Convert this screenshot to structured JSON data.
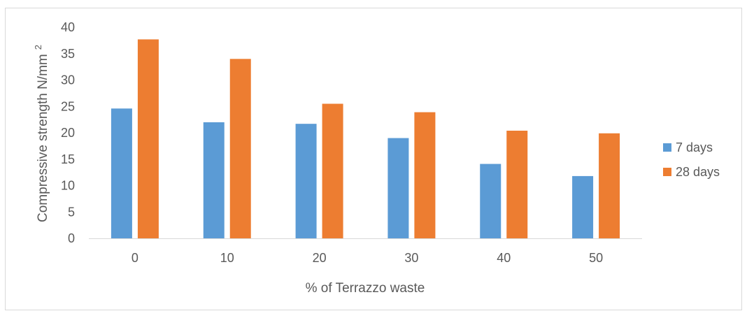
{
  "chart_data": {
    "type": "bar",
    "title": "",
    "xlabel": "% of Terrazzo waste",
    "ylabel": "Compressive strength N/mm",
    "ylabel_superscript": "2",
    "categories": [
      "0",
      "10",
      "20",
      "30",
      "40",
      "50"
    ],
    "ylim": [
      0,
      40
    ],
    "yticks": [
      "0",
      "5",
      "10",
      "15",
      "20",
      "25",
      "30",
      "35",
      "40"
    ],
    "grid": false,
    "legend_position": "right",
    "series": [
      {
        "name": "7 days",
        "color": "#5B9BD5",
        "values": [
          24.6,
          22.0,
          21.7,
          19.0,
          14.1,
          11.8
        ]
      },
      {
        "name": "28 days",
        "color": "#ED7D31",
        "values": [
          37.7,
          34.0,
          25.5,
          23.9,
          20.4,
          19.9
        ]
      }
    ]
  }
}
